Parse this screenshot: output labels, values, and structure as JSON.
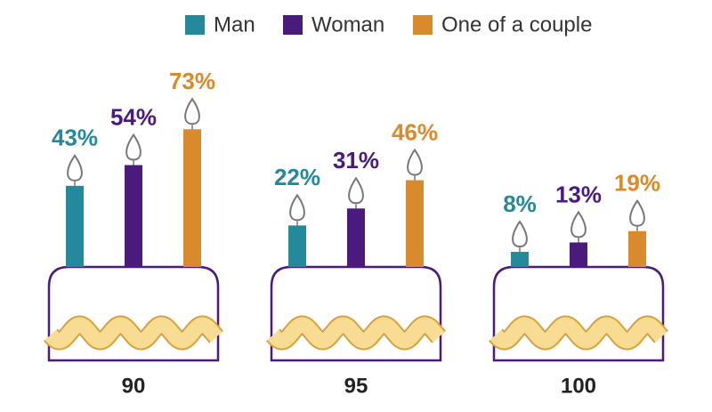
{
  "chart_data": {
    "type": "bar",
    "categories": [
      "90",
      "95",
      "100"
    ],
    "series": [
      {
        "name": "Man",
        "color": "#24899a",
        "values": [
          43,
          22,
          8
        ],
        "value_labels": [
          "43%",
          "22%",
          "8%"
        ]
      },
      {
        "name": "Woman",
        "color": "#4a1a7c",
        "values": [
          54,
          31,
          13
        ],
        "value_labels": [
          "54%",
          "31%",
          "13%"
        ]
      },
      {
        "name": "One of a couple",
        "color": "#d98a2c",
        "values": [
          73,
          46,
          19
        ],
        "value_labels": [
          "73%",
          "46%",
          "19%"
        ]
      }
    ]
  }
}
